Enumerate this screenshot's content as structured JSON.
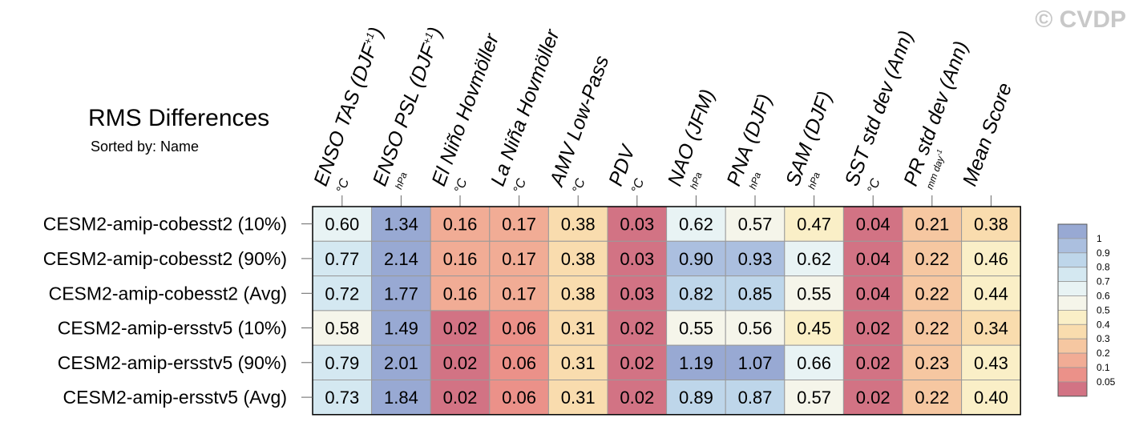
{
  "watermark": "© CVDP",
  "chart_data": {
    "type": "heatmap",
    "title": "RMS Differences",
    "subtitle": "Sorted by: Name",
    "columns": [
      {
        "label": "ENSO TAS (DJF",
        "sup": "+1",
        "close": ")",
        "unit": "°C"
      },
      {
        "label": "ENSO PSL (DJF",
        "sup": "+1",
        "close": ")",
        "unit": "hPa"
      },
      {
        "label": "El Niño Hovmöller",
        "unit": "°C"
      },
      {
        "label": "La Niña Hovmöller",
        "unit": "°C"
      },
      {
        "label": "AMV Low-Pass",
        "unit": "°C"
      },
      {
        "label": "PDV",
        "unit": "°C"
      },
      {
        "label": "NAO (JFM)",
        "unit": "hPa"
      },
      {
        "label": "PNA (DJF)",
        "unit": "hPa"
      },
      {
        "label": "SAM (DJF)",
        "unit": "hPa"
      },
      {
        "label": "SST std dev (Ann)",
        "unit": "°C"
      },
      {
        "label": "PR std dev (Ann)",
        "unit": "mm day",
        "unit_sup": "-1"
      },
      {
        "label": "Mean Score",
        "unit": ""
      }
    ],
    "rows": [
      {
        "name": "CESM2-amip-cobesst2 (10%)",
        "values": [
          "0.60",
          "1.34",
          "0.16",
          "0.17",
          "0.38",
          "0.03",
          "0.62",
          "0.57",
          "0.47",
          "0.04",
          "0.21",
          "0.38"
        ]
      },
      {
        "name": "CESM2-amip-cobesst2 (90%)",
        "values": [
          "0.77",
          "2.14",
          "0.16",
          "0.17",
          "0.38",
          "0.03",
          "0.90",
          "0.93",
          "0.62",
          "0.04",
          "0.22",
          "0.46"
        ]
      },
      {
        "name": "CESM2-amip-cobesst2 (Avg)",
        "values": [
          "0.72",
          "1.77",
          "0.16",
          "0.17",
          "0.38",
          "0.03",
          "0.82",
          "0.85",
          "0.55",
          "0.04",
          "0.22",
          "0.44"
        ]
      },
      {
        "name": "CESM2-amip-ersstv5 (10%)",
        "values": [
          "0.58",
          "1.49",
          "0.02",
          "0.06",
          "0.31",
          "0.02",
          "0.55",
          "0.56",
          "0.45",
          "0.02",
          "0.22",
          "0.34"
        ]
      },
      {
        "name": "CESM2-amip-ersstv5 (90%)",
        "values": [
          "0.79",
          "2.01",
          "0.02",
          "0.06",
          "0.31",
          "0.02",
          "1.19",
          "1.07",
          "0.66",
          "0.02",
          "0.23",
          "0.43"
        ]
      },
      {
        "name": "CESM2-amip-ersstv5 (Avg)",
        "values": [
          "0.73",
          "1.84",
          "0.02",
          "0.06",
          "0.31",
          "0.02",
          "0.89",
          "0.87",
          "0.57",
          "0.02",
          "0.22",
          "0.40"
        ]
      }
    ],
    "legend": {
      "placement": "right",
      "labels": [
        "1",
        "0.9",
        "0.8",
        "0.7",
        "0.6",
        "0.5",
        "0.4",
        "0.3",
        "0.2",
        "0.1",
        "0.05"
      ],
      "thresholds": [
        1,
        0.9,
        0.8,
        0.7,
        0.6,
        0.5,
        0.4,
        0.3,
        0.2,
        0.1,
        0.05
      ],
      "colors": [
        "#98a9d3",
        "#abbfdf",
        "#bed6ea",
        "#d4e8f1",
        "#e8f3f4",
        "#f5f5ea",
        "#faefc7",
        "#f9dcae",
        "#f6c7a1",
        "#f1ac95",
        "#eb9189",
        "#d27384"
      ]
    }
  }
}
